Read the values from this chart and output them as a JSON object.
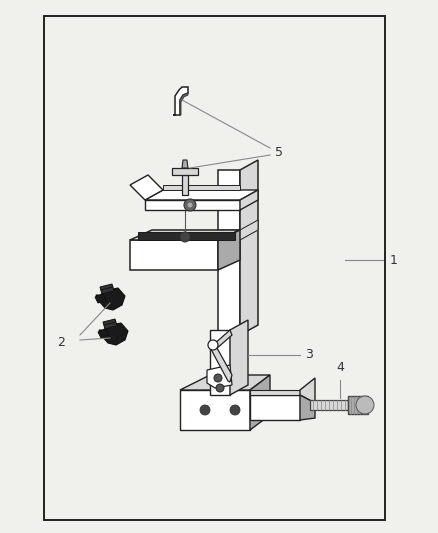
{
  "bg": "#f0f0ec",
  "fg": "#1a1a1a",
  "border": [
    0.1,
    0.03,
    0.78,
    0.945
  ],
  "label_fs": 9,
  "label_color": "#333333",
  "line_color": "#888888",
  "draw_color": "#222222",
  "light_fill": "#ffffff",
  "mid_fill": "#d8d8d8",
  "dark_fill": "#aaaaaa",
  "black_fill": "#1a1a1a"
}
